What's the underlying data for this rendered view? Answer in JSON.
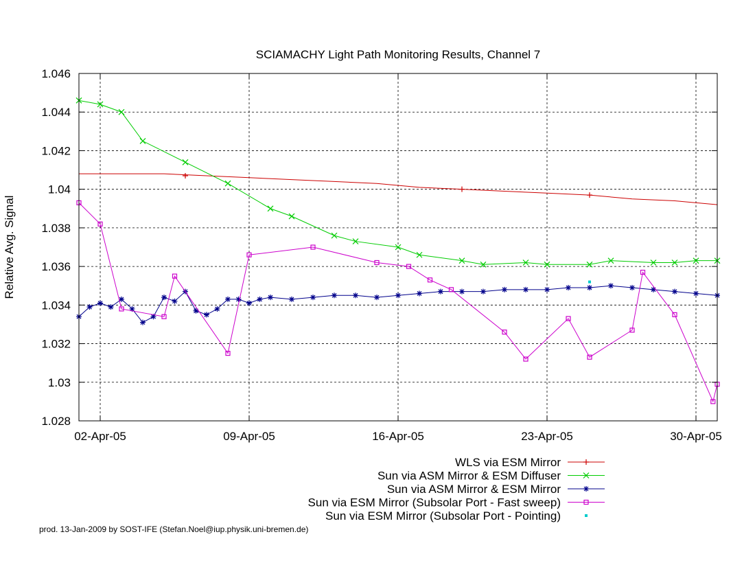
{
  "chart_data": {
    "type": "line",
    "title": "SCIAMACHY Light Path Monitoring Results, Channel 7",
    "ylabel": "Relative Avg. Signal",
    "xlabel": "",
    "xlim": [
      "2005-04-01",
      "2005-05-01"
    ],
    "ylim": [
      1.028,
      1.046
    ],
    "x_ticks": [
      "02-Apr-05",
      "09-Apr-05",
      "16-Apr-05",
      "23-Apr-05",
      "30-Apr-05"
    ],
    "y_ticks": [
      "1.046",
      "1.044",
      "1.042",
      "1.04",
      "1.038",
      "1.036",
      "1.034",
      "1.032",
      "1.03",
      "1.028"
    ],
    "grid": true,
    "legend_position": "bottom-right",
    "series": [
      {
        "name": "WLS via ESM Mirror",
        "color": "#cc0000",
        "marker": "plus",
        "points": [
          [
            "2005-04-01",
            1.0408
          ],
          [
            "2005-04-03",
            1.0408
          ],
          [
            "2005-04-05",
            1.0408
          ],
          [
            "2005-04-07",
            1.0407
          ],
          [
            "2005-04-09",
            1.0406
          ],
          [
            "2005-04-11",
            1.0405
          ],
          [
            "2005-04-13",
            1.0404
          ],
          [
            "2005-04-15",
            1.0403
          ],
          [
            "2005-04-17",
            1.0401
          ],
          [
            "2005-04-19",
            1.04
          ],
          [
            "2005-04-21",
            1.0399
          ],
          [
            "2005-04-23",
            1.0398
          ],
          [
            "2005-04-25",
            1.0397
          ],
          [
            "2005-04-27",
            1.0395
          ],
          [
            "2005-04-29",
            1.0394
          ],
          [
            "2005-05-01",
            1.0392
          ]
        ],
        "marked": [
          [
            "2005-04-06",
            1.0407
          ],
          [
            "2005-04-19",
            1.04
          ],
          [
            "2005-04-25",
            1.0397
          ]
        ]
      },
      {
        "name": "Sun via ASM Mirror & ESM Diffuser",
        "color": "#00cc00",
        "marker": "x",
        "points": [
          [
            "2005-04-01",
            1.0446
          ],
          [
            "2005-04-02",
            1.0444
          ],
          [
            "2005-04-03",
            1.044
          ],
          [
            "2005-04-04",
            1.0425
          ],
          [
            "2005-04-06",
            1.0414
          ],
          [
            "2005-04-08",
            1.0403
          ],
          [
            "2005-04-10",
            1.039
          ],
          [
            "2005-04-11",
            1.0386
          ],
          [
            "2005-04-13",
            1.0376
          ],
          [
            "2005-04-14",
            1.0373
          ],
          [
            "2005-04-16",
            1.037
          ],
          [
            "2005-04-17",
            1.0366
          ],
          [
            "2005-04-19",
            1.0363
          ],
          [
            "2005-04-20",
            1.0361
          ],
          [
            "2005-04-22",
            1.0362
          ],
          [
            "2005-04-23",
            1.0361
          ],
          [
            "2005-04-25",
            1.0361
          ],
          [
            "2005-04-26",
            1.0363
          ],
          [
            "2005-04-28",
            1.0362
          ],
          [
            "2005-04-29",
            1.0362
          ],
          [
            "2005-04-30",
            1.0363
          ],
          [
            "2005-05-01",
            1.0363
          ]
        ]
      },
      {
        "name": "Sun via ASM Mirror & ESM Mirror",
        "color": "#00008b",
        "marker": "star",
        "points": [
          [
            "2005-04-01",
            1.0334
          ],
          [
            "2005-04-01.5",
            1.0339
          ],
          [
            "2005-04-02",
            1.0341
          ],
          [
            "2005-04-02.5",
            1.0339
          ],
          [
            "2005-04-03",
            1.0343
          ],
          [
            "2005-04-03.5",
            1.0338
          ],
          [
            "2005-04-04",
            1.0331
          ],
          [
            "2005-04-04.5",
            1.0334
          ],
          [
            "2005-04-05",
            1.0344
          ],
          [
            "2005-04-05.5",
            1.0342
          ],
          [
            "2005-04-06",
            1.0347
          ],
          [
            "2005-04-06.5",
            1.0337
          ],
          [
            "2005-04-07",
            1.0335
          ],
          [
            "2005-04-07.5",
            1.0338
          ],
          [
            "2005-04-08",
            1.0343
          ],
          [
            "2005-04-08.5",
            1.0343
          ],
          [
            "2005-04-09",
            1.0341
          ],
          [
            "2005-04-09.5",
            1.0343
          ],
          [
            "2005-04-10",
            1.0344
          ],
          [
            "2005-04-11",
            1.0343
          ],
          [
            "2005-04-12",
            1.0344
          ],
          [
            "2005-04-13",
            1.0345
          ],
          [
            "2005-04-14",
            1.0345
          ],
          [
            "2005-04-15",
            1.0344
          ],
          [
            "2005-04-16",
            1.0345
          ],
          [
            "2005-04-17",
            1.0346
          ],
          [
            "2005-04-18",
            1.0347
          ],
          [
            "2005-04-19",
            1.0347
          ],
          [
            "2005-04-20",
            1.0347
          ],
          [
            "2005-04-21",
            1.0348
          ],
          [
            "2005-04-22",
            1.0348
          ],
          [
            "2005-04-23",
            1.0348
          ],
          [
            "2005-04-24",
            1.0349
          ],
          [
            "2005-04-25",
            1.0349
          ],
          [
            "2005-04-26",
            1.035
          ],
          [
            "2005-04-27",
            1.0349
          ],
          [
            "2005-04-28",
            1.0348
          ],
          [
            "2005-04-29",
            1.0347
          ],
          [
            "2005-04-30",
            1.0346
          ],
          [
            "2005-05-01",
            1.0345
          ]
        ]
      },
      {
        "name": "Sun via ESM Mirror (Subsolar Port - Fast sweep)",
        "color": "#cc00cc",
        "marker": "square",
        "points": [
          [
            "2005-04-01",
            1.0393
          ],
          [
            "2005-04-02",
            1.0382
          ],
          [
            "2005-04-03",
            1.0338
          ],
          [
            "2005-04-05",
            1.0334
          ],
          [
            "2005-04-05.5",
            1.0355
          ],
          [
            "2005-04-08",
            1.0315
          ],
          [
            "2005-04-09",
            1.0366
          ],
          [
            "2005-04-12",
            1.037
          ],
          [
            "2005-04-15",
            1.0362
          ],
          [
            "2005-04-16.5",
            1.036
          ],
          [
            "2005-04-17.5",
            1.0353
          ],
          [
            "2005-04-18.5",
            1.0348
          ],
          [
            "2005-04-21",
            1.0326
          ],
          [
            "2005-04-22",
            1.0312
          ],
          [
            "2005-04-24",
            1.0333
          ],
          [
            "2005-04-25",
            1.0313
          ],
          [
            "2005-04-27",
            1.0327
          ],
          [
            "2005-04-27.5",
            1.0357
          ],
          [
            "2005-04-29",
            1.0335
          ],
          [
            "2005-04-30.8",
            1.029
          ],
          [
            "2005-05-01",
            1.0299
          ]
        ]
      },
      {
        "name": "Sun via ESM Mirror (Subsolar Port - Pointing)",
        "color": "#00cccc",
        "marker": "dot",
        "points": [
          [
            "2005-04-25",
            1.0352
          ]
        ]
      }
    ]
  },
  "footer": {
    "credit": "prod. 13-Jan-2009 by SOST-IFE (Stefan.Noel@iup.physik.uni-bremen.de)"
  }
}
